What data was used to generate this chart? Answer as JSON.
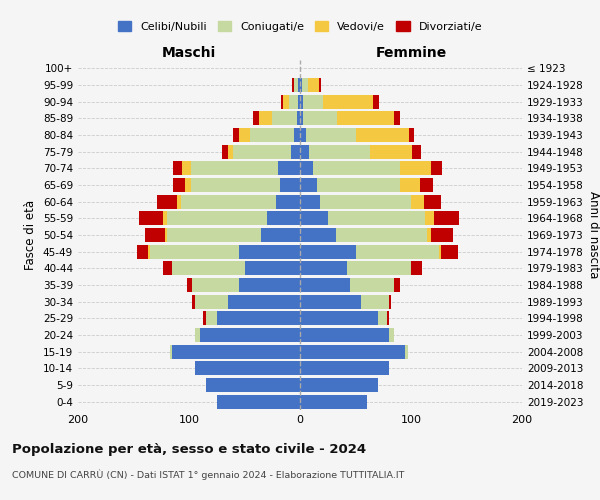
{
  "age_groups": [
    "0-4",
    "5-9",
    "10-14",
    "15-19",
    "20-24",
    "25-29",
    "30-34",
    "35-39",
    "40-44",
    "45-49",
    "50-54",
    "55-59",
    "60-64",
    "65-69",
    "70-74",
    "75-79",
    "80-84",
    "85-89",
    "90-94",
    "95-99",
    "100+"
  ],
  "birth_years": [
    "2019-2023",
    "2014-2018",
    "2009-2013",
    "2004-2008",
    "1999-2003",
    "1994-1998",
    "1989-1993",
    "1984-1988",
    "1979-1983",
    "1974-1978",
    "1969-1973",
    "1964-1968",
    "1959-1963",
    "1954-1958",
    "1949-1953",
    "1944-1948",
    "1939-1943",
    "1934-1938",
    "1929-1933",
    "1924-1928",
    "≤ 1923"
  ],
  "maschi": {
    "celibi": [
      75,
      85,
      95,
      115,
      90,
      75,
      65,
      55,
      50,
      55,
      35,
      30,
      22,
      18,
      20,
      8,
      5,
      3,
      2,
      2,
      0
    ],
    "coniugati": [
      0,
      0,
      0,
      2,
      5,
      10,
      30,
      42,
      65,
      80,
      85,
      90,
      85,
      80,
      78,
      52,
      40,
      22,
      8,
      3,
      0
    ],
    "vedovi": [
      0,
      0,
      0,
      0,
      0,
      0,
      0,
      0,
      0,
      2,
      2,
      3,
      4,
      6,
      8,
      5,
      10,
      12,
      5,
      0,
      0
    ],
    "divorziati": [
      0,
      0,
      0,
      0,
      0,
      2,
      2,
      5,
      8,
      10,
      18,
      22,
      18,
      10,
      8,
      5,
      5,
      5,
      2,
      2,
      0
    ]
  },
  "femmine": {
    "nubili": [
      60,
      70,
      80,
      95,
      80,
      70,
      55,
      45,
      42,
      50,
      32,
      25,
      18,
      15,
      12,
      8,
      5,
      3,
      3,
      2,
      0
    ],
    "coniugate": [
      0,
      0,
      0,
      2,
      5,
      8,
      25,
      40,
      58,
      75,
      82,
      88,
      82,
      75,
      78,
      55,
      45,
      30,
      18,
      5,
      0
    ],
    "vedove": [
      0,
      0,
      0,
      0,
      0,
      0,
      0,
      0,
      0,
      2,
      4,
      8,
      12,
      18,
      28,
      38,
      48,
      52,
      45,
      10,
      0
    ],
    "divorziate": [
      0,
      0,
      0,
      0,
      0,
      2,
      2,
      5,
      10,
      15,
      20,
      22,
      15,
      12,
      10,
      8,
      5,
      5,
      5,
      2,
      0
    ]
  },
  "colors": {
    "celibi": "#4472c4",
    "coniugati": "#c5d9a0",
    "vedovi": "#f5c842",
    "divorziati": "#c00000"
  },
  "legend_labels": [
    "Celibi/Nubili",
    "Coniugati/e",
    "Vedovi/e",
    "Divorziati/e"
  ],
  "title": "Popolazione per età, sesso e stato civile - 2024",
  "subtitle": "COMUNE DI CARRÙ (CN) - Dati ISTAT 1° gennaio 2024 - Elaborazione TUTTITALIA.IT",
  "xlabel_maschi": "Maschi",
  "xlabel_femmine": "Femmine",
  "ylabel": "Fasce di età",
  "ylabel_right": "Anni di nascita",
  "xlim": 200,
  "background_color": "#f5f5f5",
  "grid_color": "#cccccc",
  "bar_height": 0.85
}
